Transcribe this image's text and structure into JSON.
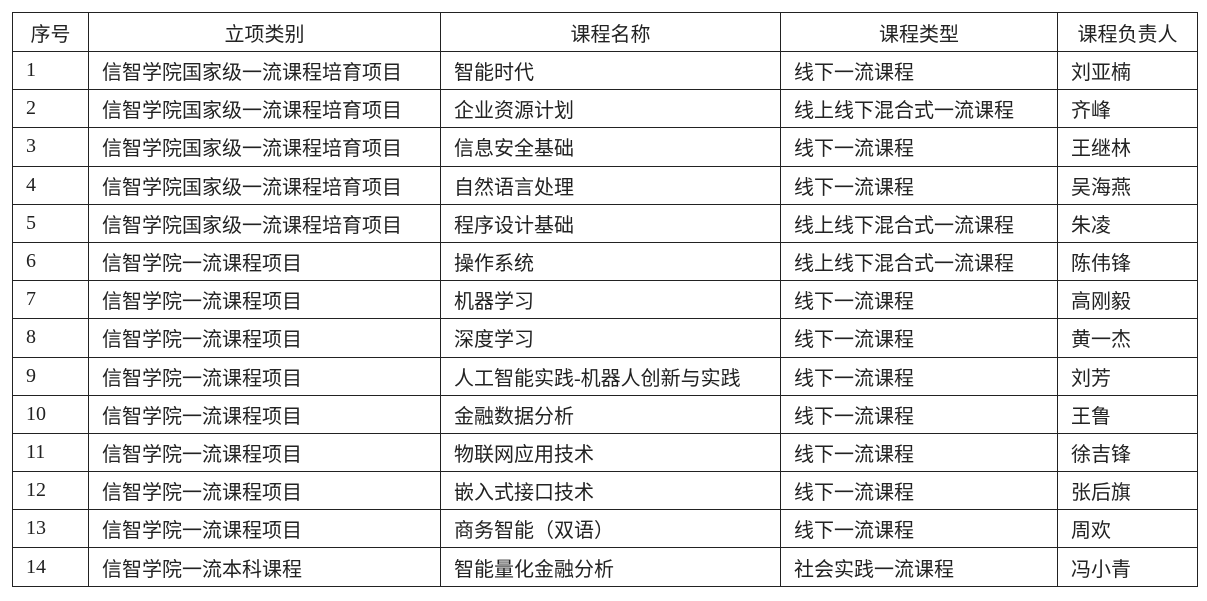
{
  "headers": [
    "序号",
    "立项类别",
    "课程名称",
    "课程类型",
    "课程负责人"
  ],
  "rows": [
    [
      "1",
      "信智学院国家级一流课程培育项目",
      "智能时代",
      "线下一流课程",
      "刘亚楠"
    ],
    [
      "2",
      "信智学院国家级一流课程培育项目",
      "企业资源计划",
      "线上线下混合式一流课程",
      "齐峰"
    ],
    [
      "3",
      "信智学院国家级一流课程培育项目",
      "信息安全基础",
      "线下一流课程",
      "王继林"
    ],
    [
      "4",
      "信智学院国家级一流课程培育项目",
      "自然语言处理",
      "线下一流课程",
      "吴海燕"
    ],
    [
      "5",
      "信智学院国家级一流课程培育项目",
      "程序设计基础",
      "线上线下混合式一流课程",
      "朱凌"
    ],
    [
      "6",
      "信智学院一流课程项目",
      "操作系统",
      "线上线下混合式一流课程",
      "陈伟锋"
    ],
    [
      "7",
      "信智学院一流课程项目",
      "机器学习",
      "线下一流课程",
      "高刚毅"
    ],
    [
      "8",
      "信智学院一流课程项目",
      "深度学习",
      "线下一流课程",
      "黄一杰"
    ],
    [
      "9",
      "信智学院一流课程项目",
      "人工智能实践-机器人创新与实践",
      "线下一流课程",
      "刘芳"
    ],
    [
      "10",
      "信智学院一流课程项目",
      "金融数据分析",
      "线下一流课程",
      "王鲁"
    ],
    [
      "11",
      "信智学院一流课程项目",
      "物联网应用技术",
      "线下一流课程",
      "徐吉锋"
    ],
    [
      "12",
      "信智学院一流课程项目",
      "嵌入式接口技术",
      "线下一流课程",
      "张后旗"
    ],
    [
      "13",
      "信智学院一流课程项目",
      "商务智能（双语）",
      "线下一流课程",
      "周欢"
    ],
    [
      "14",
      "信智学院一流本科课程",
      "智能量化金融分析",
      "社会实践一流课程",
      "冯小青"
    ]
  ]
}
